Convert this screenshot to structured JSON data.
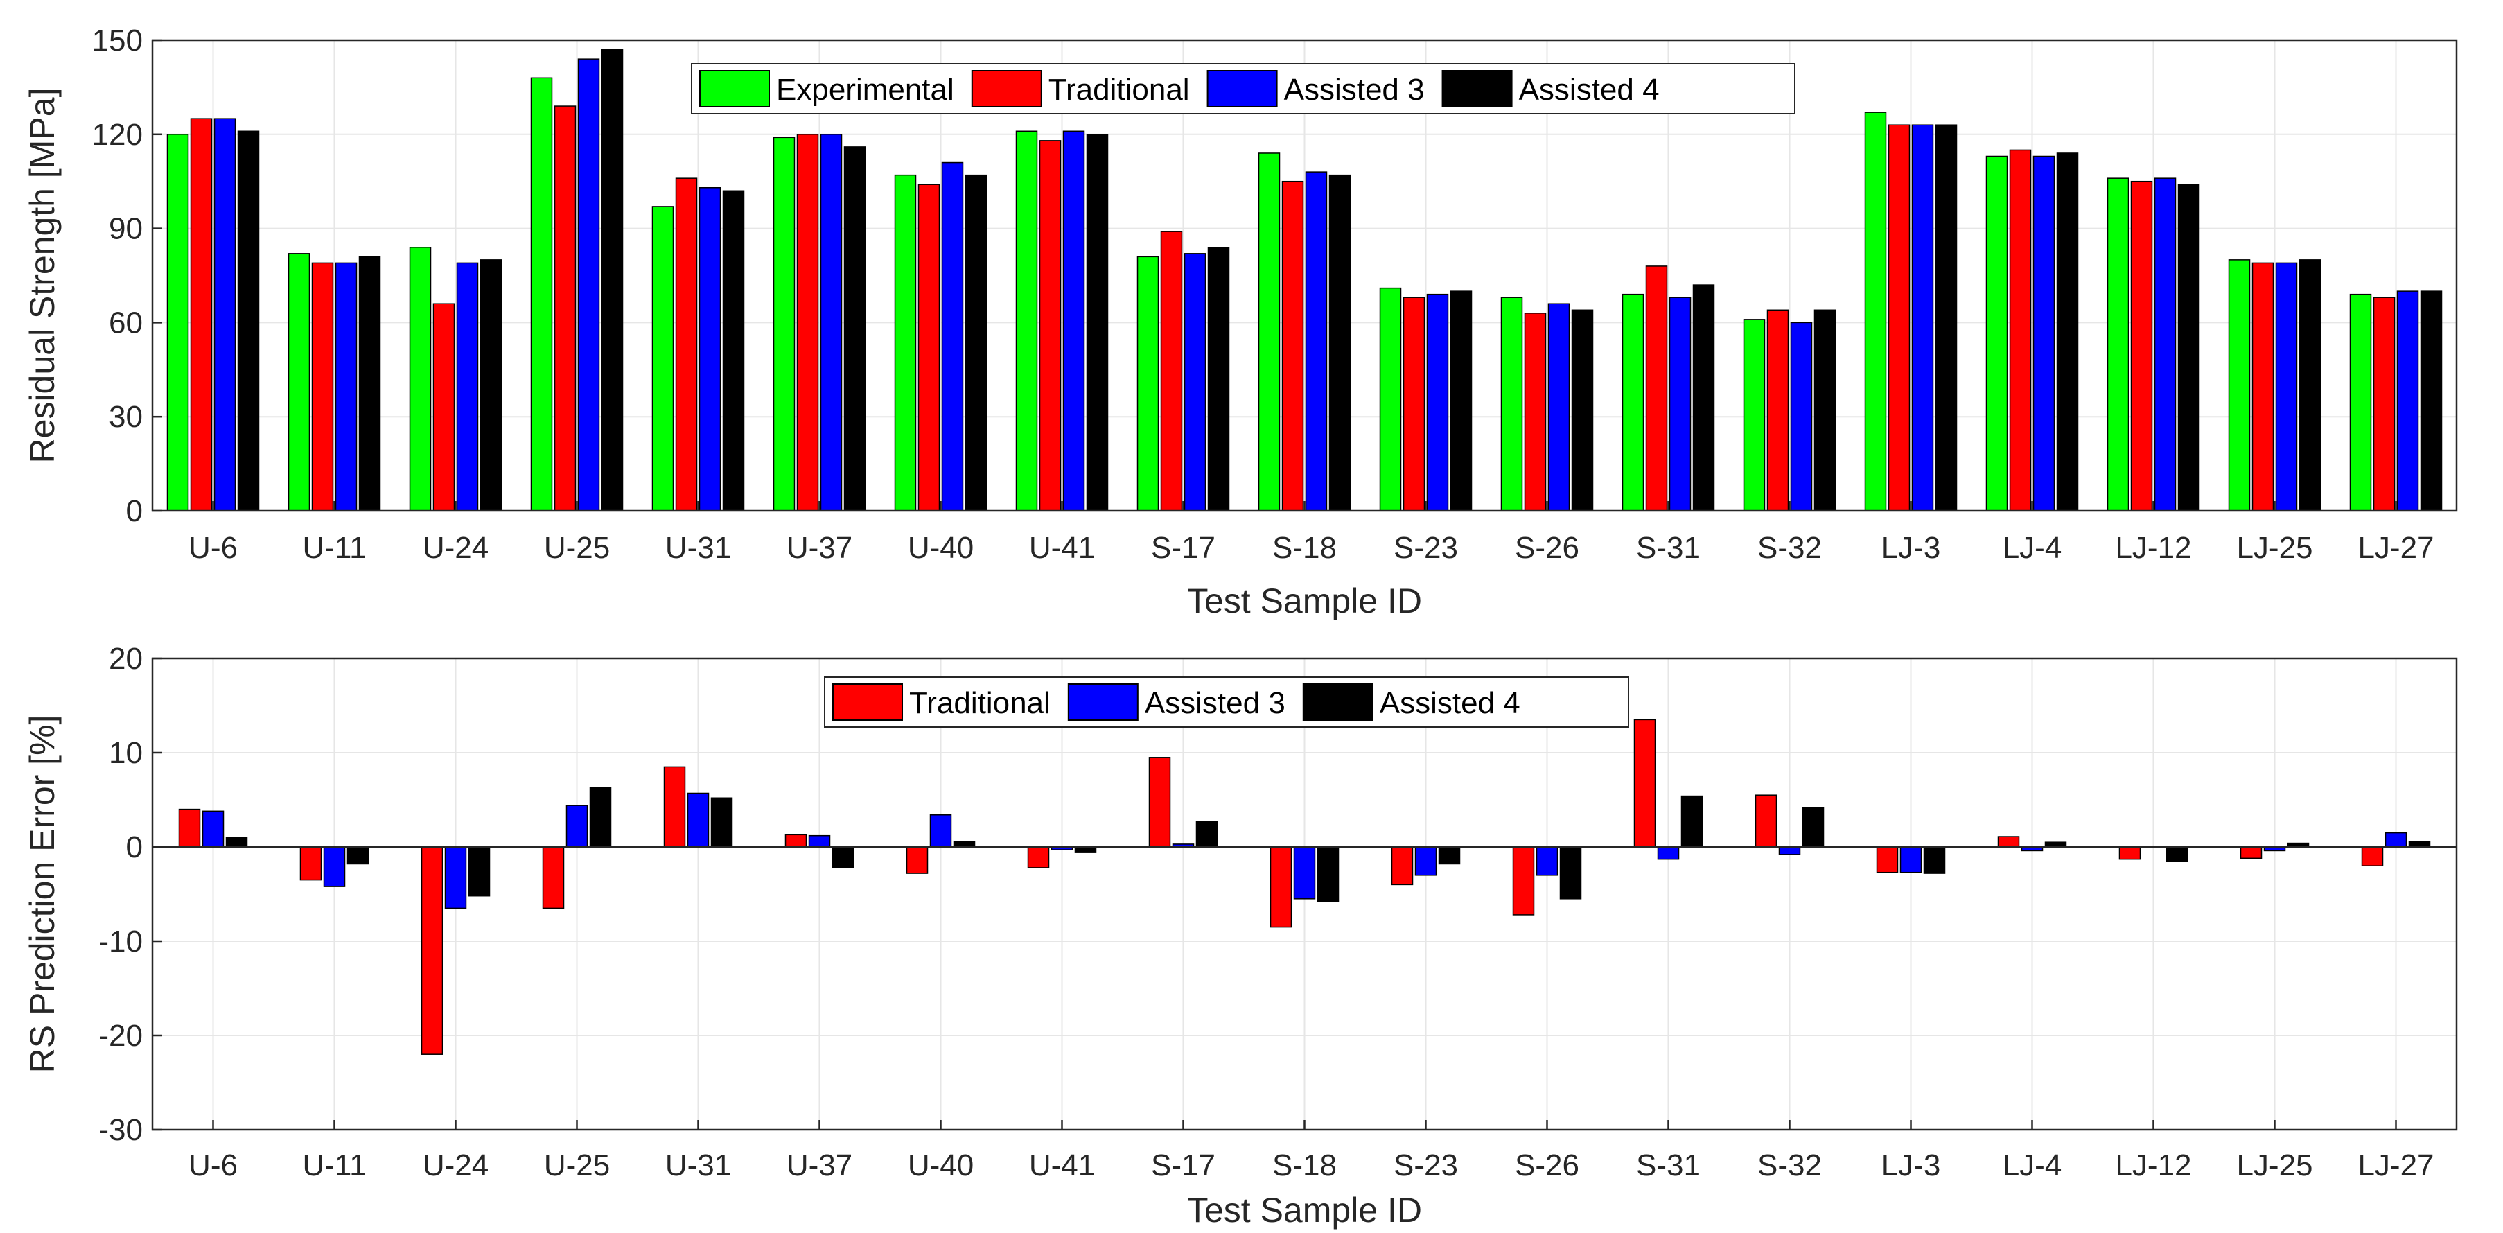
{
  "colors": {
    "experimental": "#00ff00",
    "traditional": "#ff0000",
    "assisted3": "#0000ff",
    "assisted4": "#000000",
    "grid": "#e6e6e6",
    "axis": "#262626"
  },
  "chart_data": [
    {
      "type": "bar",
      "title": "",
      "xlabel": "Test Sample ID",
      "ylabel": "Residual Strength [MPa]",
      "ylim": [
        0,
        150
      ],
      "yticks": [
        0,
        30,
        60,
        90,
        120,
        150
      ],
      "grid": true,
      "legend_position": "top-center",
      "categories": [
        "U-6",
        "U-11",
        "U-24",
        "U-25",
        "U-31",
        "U-37",
        "U-40",
        "U-41",
        "S-17",
        "S-18",
        "S-23",
        "S-26",
        "S-31",
        "S-32",
        "LJ-3",
        "LJ-4",
        "LJ-12",
        "LJ-25",
        "LJ-27"
      ],
      "series": [
        {
          "name": "Experimental",
          "color_key": "experimental",
          "values": [
            120,
            82,
            84,
            138,
            97,
            119,
            107,
            121,
            81,
            114,
            71,
            68,
            69,
            61,
            127,
            113,
            106,
            80,
            69
          ]
        },
        {
          "name": "Traditional",
          "color_key": "traditional",
          "values": [
            125,
            79,
            66,
            129,
            106,
            120,
            104,
            118,
            89,
            105,
            68,
            63,
            78,
            64,
            123,
            115,
            105,
            79,
            68
          ]
        },
        {
          "name": "Assisted 3",
          "color_key": "assisted3",
          "values": [
            125,
            79,
            79,
            144,
            103,
            120,
            111,
            121,
            82,
            108,
            69,
            66,
            68,
            60,
            123,
            113,
            106,
            79,
            70
          ]
        },
        {
          "name": "Assisted 4",
          "color_key": "assisted4",
          "values": [
            121,
            81,
            80,
            147,
            102,
            116,
            107,
            120,
            84,
            107,
            70,
            64,
            72,
            64,
            123,
            114,
            104,
            80,
            70
          ]
        }
      ]
    },
    {
      "type": "bar",
      "title": "",
      "xlabel": "Test Sample ID",
      "ylabel": "RS Prediction Error [%]",
      "ylim": [
        -30,
        20
      ],
      "yticks": [
        -30,
        -20,
        -10,
        0,
        10,
        20
      ],
      "grid": true,
      "legend_position": "top-center",
      "categories": [
        "U-6",
        "U-11",
        "U-24",
        "U-25",
        "U-31",
        "U-37",
        "U-40",
        "U-41",
        "S-17",
        "S-18",
        "S-23",
        "S-26",
        "S-31",
        "S-32",
        "LJ-3",
        "LJ-4",
        "LJ-12",
        "LJ-25",
        "LJ-27"
      ],
      "series": [
        {
          "name": "Traditional",
          "color_key": "traditional",
          "values": [
            4.0,
            -3.5,
            -22.0,
            -6.5,
            8.5,
            1.3,
            -2.8,
            -2.2,
            9.5,
            -8.5,
            -4.0,
            -7.2,
            13.5,
            5.5,
            -2.7,
            1.1,
            -1.3,
            -1.2,
            -2.0
          ]
        },
        {
          "name": "Assisted 3",
          "color_key": "assisted3",
          "values": [
            3.8,
            -4.2,
            -6.5,
            4.4,
            5.7,
            1.2,
            3.4,
            -0.3,
            0.3,
            -5.5,
            -3.0,
            -3.0,
            -1.3,
            -0.8,
            -2.7,
            -0.4,
            0.0,
            -0.4,
            1.5
          ]
        },
        {
          "name": "Assisted 4",
          "color_key": "assisted4",
          "values": [
            1.0,
            -1.8,
            -5.2,
            6.3,
            5.2,
            -2.2,
            0.6,
            -0.6,
            2.7,
            -5.8,
            -1.8,
            -5.5,
            5.4,
            4.2,
            -2.8,
            0.5,
            -1.5,
            0.4,
            0.6
          ]
        }
      ]
    }
  ]
}
